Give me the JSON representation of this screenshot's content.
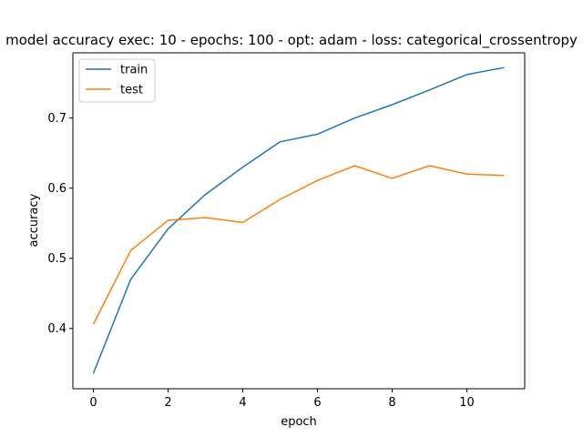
{
  "chart_data": {
    "type": "line",
    "title": "model accuracy exec: 10 - epochs: 100 - opt: adam - loss: categorical_crossentropy",
    "xlabel": "epoch",
    "ylabel": "accuracy",
    "x": [
      0,
      1,
      2,
      3,
      4,
      5,
      6,
      7,
      8,
      9,
      10,
      11
    ],
    "xlim": [
      -0.55,
      11.55
    ],
    "ylim": [
      0.314,
      0.793
    ],
    "xticks": [
      0,
      2,
      4,
      6,
      8,
      10
    ],
    "yticks": [
      0.4,
      0.5,
      0.6,
      0.7
    ],
    "xtick_labels": [
      "0",
      "2",
      "4",
      "6",
      "8",
      "10"
    ],
    "ytick_labels": [
      "0.4",
      "0.5",
      "0.6",
      "0.7"
    ],
    "grid": false,
    "legend_position": "upper-left",
    "series": [
      {
        "name": "train",
        "color": "#1f77b4",
        "values": [
          0.336,
          0.47,
          0.542,
          0.591,
          0.63,
          0.666,
          0.677,
          0.7,
          0.719,
          0.74,
          0.762,
          0.772
        ]
      },
      {
        "name": "test",
        "color": "#ff7f0e",
        "values": [
          0.406,
          0.511,
          0.554,
          0.558,
          0.551,
          0.584,
          0.611,
          0.632,
          0.614,
          0.632,
          0.62,
          0.618
        ]
      }
    ]
  }
}
